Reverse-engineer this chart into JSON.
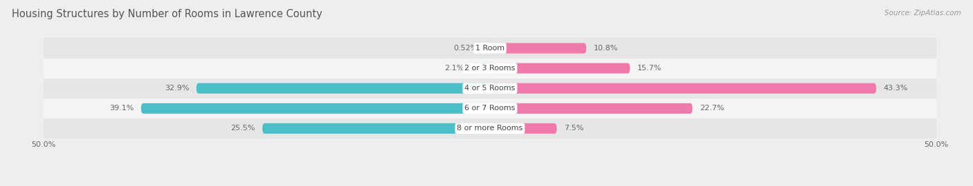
{
  "title": "Housing Structures by Number of Rooms in Lawrence County",
  "source": "Source: ZipAtlas.com",
  "categories": [
    "1 Room",
    "2 or 3 Rooms",
    "4 or 5 Rooms",
    "6 or 7 Rooms",
    "8 or more Rooms"
  ],
  "owner_values": [
    0.52,
    2.1,
    32.9,
    39.1,
    25.5
  ],
  "renter_values": [
    10.8,
    15.7,
    43.3,
    22.7,
    7.5
  ],
  "owner_color": "#4BBFC8",
  "renter_color": "#F07AAA",
  "xlim": 50.0,
  "bar_height": 0.52,
  "background_color": "#eeeeee",
  "row_bg_even": "#e6e6e6",
  "row_bg_odd": "#f4f4f4",
  "title_fontsize": 10.5,
  "label_fontsize": 8.0,
  "tick_fontsize": 8.0,
  "source_fontsize": 7.5,
  "cat_fontsize": 8.0
}
